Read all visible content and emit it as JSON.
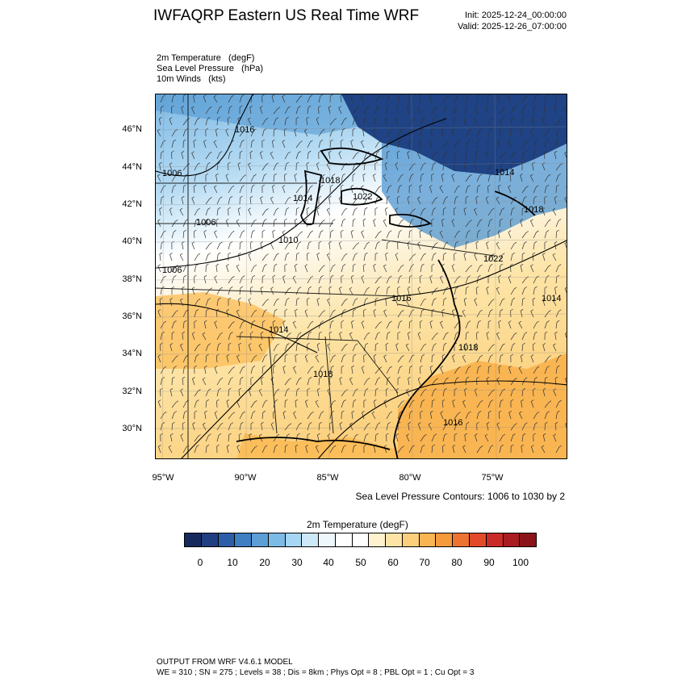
{
  "header": {
    "title": "IWFAQRP Eastern US Real Time WRF",
    "init": "Init: 2025-12-24_00:00:00",
    "valid": "Valid: 2025-12-26_07:00:00"
  },
  "fields": [
    "2m Temperature   (degF)",
    "Sea Level Pressure   (hPa)",
    "10m Winds   (kts)"
  ],
  "map": {
    "lat_labels": [
      "46°N",
      "44°N",
      "42°N",
      "40°N",
      "38°N",
      "36°N",
      "34°N",
      "32°N",
      "30°N"
    ],
    "lon_labels": [
      "95°W",
      "90°W",
      "85°W",
      "80°W",
      "75°W"
    ],
    "isobar_labels": [
      "1016",
      "1006",
      "1018",
      "1014",
      "1022",
      "1006",
      "1010",
      "1006",
      "1016",
      "1014",
      "1022",
      "1018",
      "1014",
      "1018",
      "1016",
      "1018",
      "1014"
    ],
    "colors": {
      "cold_dark": "#1a3770",
      "cold_mid": "#4f95d0",
      "cold_light": "#b7dcf3",
      "neutral": "#ffffff",
      "warm_light": "#fde4a6",
      "warm_mid": "#fbbe5a",
      "coast": "#000000"
    }
  },
  "contour_note": "Sea Level Pressure Contours: 1006 to 1030 by 2",
  "colorbar": {
    "title": "2m Temperature  (degF)",
    "colors": [
      "#172a5c",
      "#203f80",
      "#2c5ea7",
      "#3f7fc2",
      "#5b9fd6",
      "#7dbbe6",
      "#a6d6f2",
      "#cde8f7",
      "#eef7fc",
      "#ffffff",
      "#ffffff",
      "#fff2cf",
      "#fde4a6",
      "#fbcf7c",
      "#f9b552",
      "#f59a3d",
      "#ee7330",
      "#e24b2a",
      "#c92b28",
      "#a91c22",
      "#8a1419"
    ],
    "labels": [
      "0",
      "10",
      "20",
      "30",
      "40",
      "50",
      "60",
      "70",
      "80",
      "90",
      "100"
    ]
  },
  "footer": {
    "line1": "OUTPUT FROM WRF V4.6.1 MODEL",
    "line2": "WE = 310 ; SN = 275 ; Levels = 38 ; Dis = 8km ; Phys Opt = 8 ; PBL Opt = 1 ; Cu Opt = 3"
  }
}
